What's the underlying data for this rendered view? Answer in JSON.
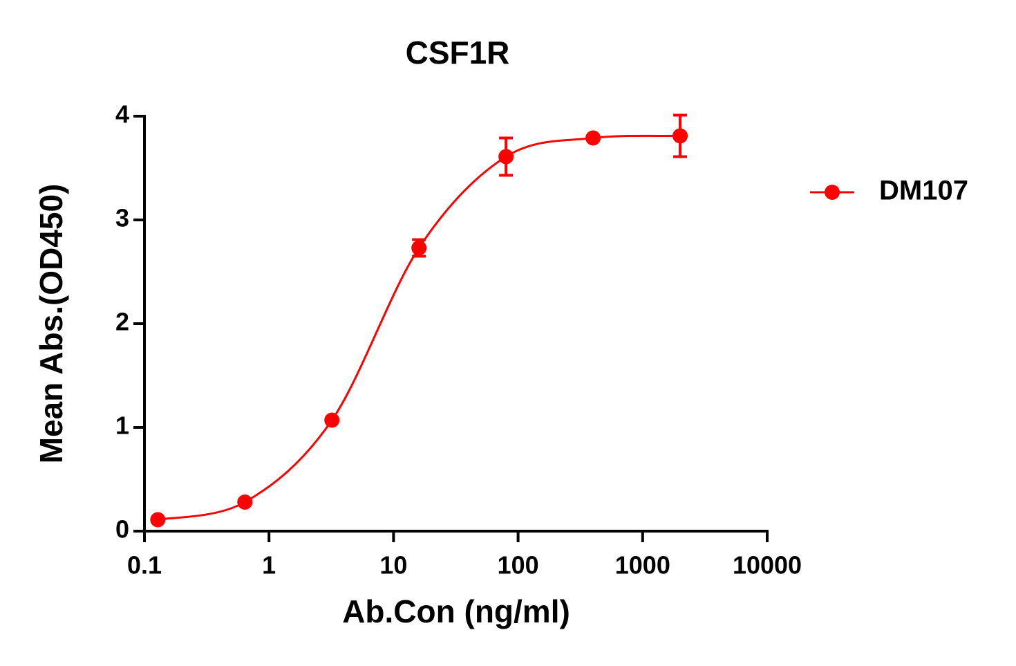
{
  "chart_data": {
    "type": "line",
    "title": "CSF1R",
    "x_label": "Ab.Con (ng/ml)",
    "y_label": "Mean Abs.(OD450)",
    "x_scale": "log",
    "xlim": [
      0.1,
      10000
    ],
    "xticks": [
      0.1,
      1,
      10,
      100,
      1000,
      10000
    ],
    "ylim": [
      0,
      4
    ],
    "yticks": [
      0,
      1,
      2,
      3,
      4
    ],
    "legend": "right",
    "series": [
      {
        "name": "DM107",
        "color": "#ff0000",
        "x": [
          0.128,
          0.64,
          3.2,
          16,
          80,
          400,
          2000
        ],
        "values": [
          0.11,
          0.28,
          1.07,
          2.73,
          3.61,
          3.79,
          3.81
        ],
        "errors": [
          0.01,
          0.01,
          0.01,
          0.08,
          0.18,
          0.02,
          0.2
        ]
      }
    ]
  }
}
